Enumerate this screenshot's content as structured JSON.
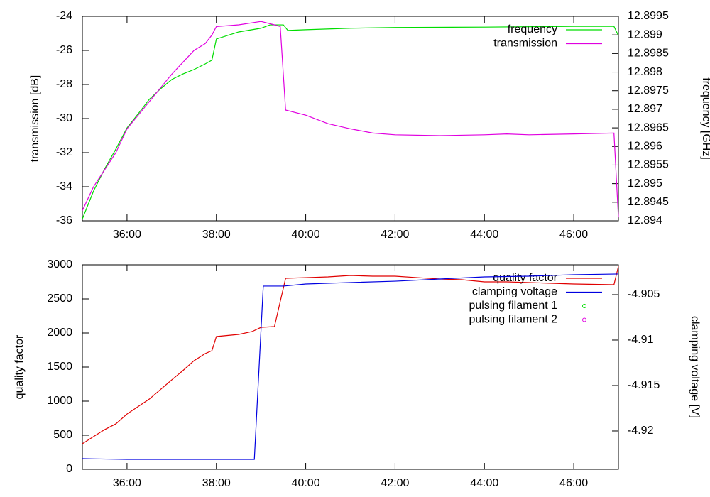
{
  "chart_data": [
    {
      "type": "line",
      "ylabel": "transmission [dB]",
      "y2label": "frequency [GHz]",
      "xlim": [
        35,
        47
      ],
      "xticks": [
        {
          "value": 36,
          "label": "36:00"
        },
        {
          "value": 38,
          "label": "38:00"
        },
        {
          "value": 40,
          "label": "40:00"
        },
        {
          "value": 42,
          "label": "42:00"
        },
        {
          "value": 44,
          "label": "44:00"
        },
        {
          "value": 46,
          "label": "46:00"
        }
      ],
      "ylim": [
        -36,
        -24
      ],
      "yticks": [
        -36,
        -34,
        -32,
        -30,
        -28,
        -26,
        -24
      ],
      "y2lim": [
        12.894,
        12.8995
      ],
      "y2ticks": [
        12.894,
        12.8945,
        12.895,
        12.8955,
        12.896,
        12.8965,
        12.897,
        12.8975,
        12.898,
        12.8985,
        12.899,
        12.8995
      ],
      "legend": "top right",
      "series": [
        {
          "name": "frequency",
          "color": "#00dd00",
          "style": "lines",
          "axis": "y2",
          "x": [
            35,
            35.25,
            35.5,
            35.75,
            36,
            36.25,
            36.5,
            36.75,
            37,
            37.25,
            37.5,
            37.75,
            37.9,
            38,
            38.5,
            39,
            39.2,
            39.5,
            39.6,
            40,
            41,
            42,
            44,
            46,
            46.9,
            47
          ],
          "values": [
            12.89405,
            12.8948,
            12.8954,
            12.89593,
            12.8965,
            12.89688,
            12.89727,
            12.89755,
            12.8978,
            12.89795,
            12.89807,
            12.89822,
            12.89832,
            12.89889,
            12.89908,
            12.89918,
            12.89927,
            12.89927,
            12.89912,
            12.89914,
            12.89918,
            12.8992,
            12.89921,
            12.89923,
            12.89923,
            12.89898
          ]
        },
        {
          "name": "transmission",
          "color": "#e000e0",
          "style": "lines",
          "axis": "y",
          "x": [
            35,
            35.25,
            35.5,
            35.75,
            36,
            36.25,
            36.5,
            36.75,
            37,
            37.25,
            37.5,
            37.75,
            37.9,
            38,
            38.5,
            39,
            39.3,
            39.43,
            39.55,
            40,
            40.5,
            41,
            41.5,
            42,
            43,
            44,
            44.5,
            45,
            46,
            46.9,
            47
          ],
          "values": [
            -35.4,
            -34,
            -33,
            -32,
            -30.6,
            -29.8,
            -29,
            -28.2,
            -27.4,
            -26.7,
            -26,
            -25.6,
            -25.1,
            -24.6,
            -24.5,
            -24.3,
            -24.5,
            -24.6,
            -29.5,
            -29.8,
            -30.3,
            -30.6,
            -30.85,
            -30.95,
            -31,
            -30.95,
            -30.9,
            -30.95,
            -30.9,
            -30.85,
            -35.8
          ]
        }
      ]
    },
    {
      "type": "line",
      "ylabel": "quality factor",
      "y2label": "clamping voltage [V]",
      "xlim": [
        35,
        47
      ],
      "xticks": [
        {
          "value": 36,
          "label": "36:00"
        },
        {
          "value": 38,
          "label": "38:00"
        },
        {
          "value": 40,
          "label": "40:00"
        },
        {
          "value": 42,
          "label": "42:00"
        },
        {
          "value": 44,
          "label": "44:00"
        },
        {
          "value": 46,
          "label": "46:00"
        }
      ],
      "ylim": [
        0,
        3000
      ],
      "yticks": [
        0,
        500,
        1000,
        1500,
        2000,
        2500,
        3000
      ],
      "y2lim": [
        -4.92422,
        -4.90172
      ],
      "y2ticks": [
        -4.92,
        -4.915,
        -4.91,
        -4.905
      ],
      "legend": "top right",
      "series": [
        {
          "name": "quality factor",
          "color": "#e00000",
          "style": "lines",
          "axis": "y",
          "x": [
            35,
            35.25,
            35.5,
            35.75,
            36,
            36.5,
            37,
            37.25,
            37.5,
            37.75,
            37.9,
            38,
            38.5,
            38.8,
            39,
            39.3,
            39.55,
            40,
            40.5,
            41,
            41.5,
            42,
            42.5,
            43,
            43.5,
            44,
            44.5,
            45,
            45.5,
            46,
            46.9,
            47
          ],
          "values": [
            375,
            480,
            583,
            667,
            812,
            1031,
            1312,
            1448,
            1594,
            1698,
            1740,
            1948,
            1979,
            2021,
            2083,
            2094,
            2802,
            2812,
            2823,
            2844,
            2833,
            2833,
            2812,
            2792,
            2781,
            2750,
            2750,
            2740,
            2729,
            2719,
            2708,
            2979
          ]
        },
        {
          "name": "clamping voltage",
          "color": "#0000e0",
          "style": "lines",
          "axis": "y2",
          "x": [
            35,
            36,
            37,
            38,
            38.85,
            39.05,
            39.5,
            40,
            41,
            42,
            43,
            44,
            45,
            46,
            47
          ],
          "values": [
            -4.92305,
            -4.92313,
            -4.92313,
            -4.92313,
            -4.92313,
            -4.90406,
            -4.90406,
            -4.90383,
            -4.90367,
            -4.90352,
            -4.90328,
            -4.90305,
            -4.90297,
            -4.90281,
            -4.90273
          ]
        },
        {
          "name": "pulsing filament 1",
          "color": "#00dd00",
          "style": "points",
          "axis": "y",
          "x": [],
          "values": []
        },
        {
          "name": "pulsing filament 2",
          "color": "#e000e0",
          "style": "points",
          "axis": "y",
          "x": [],
          "values": []
        }
      ]
    }
  ]
}
